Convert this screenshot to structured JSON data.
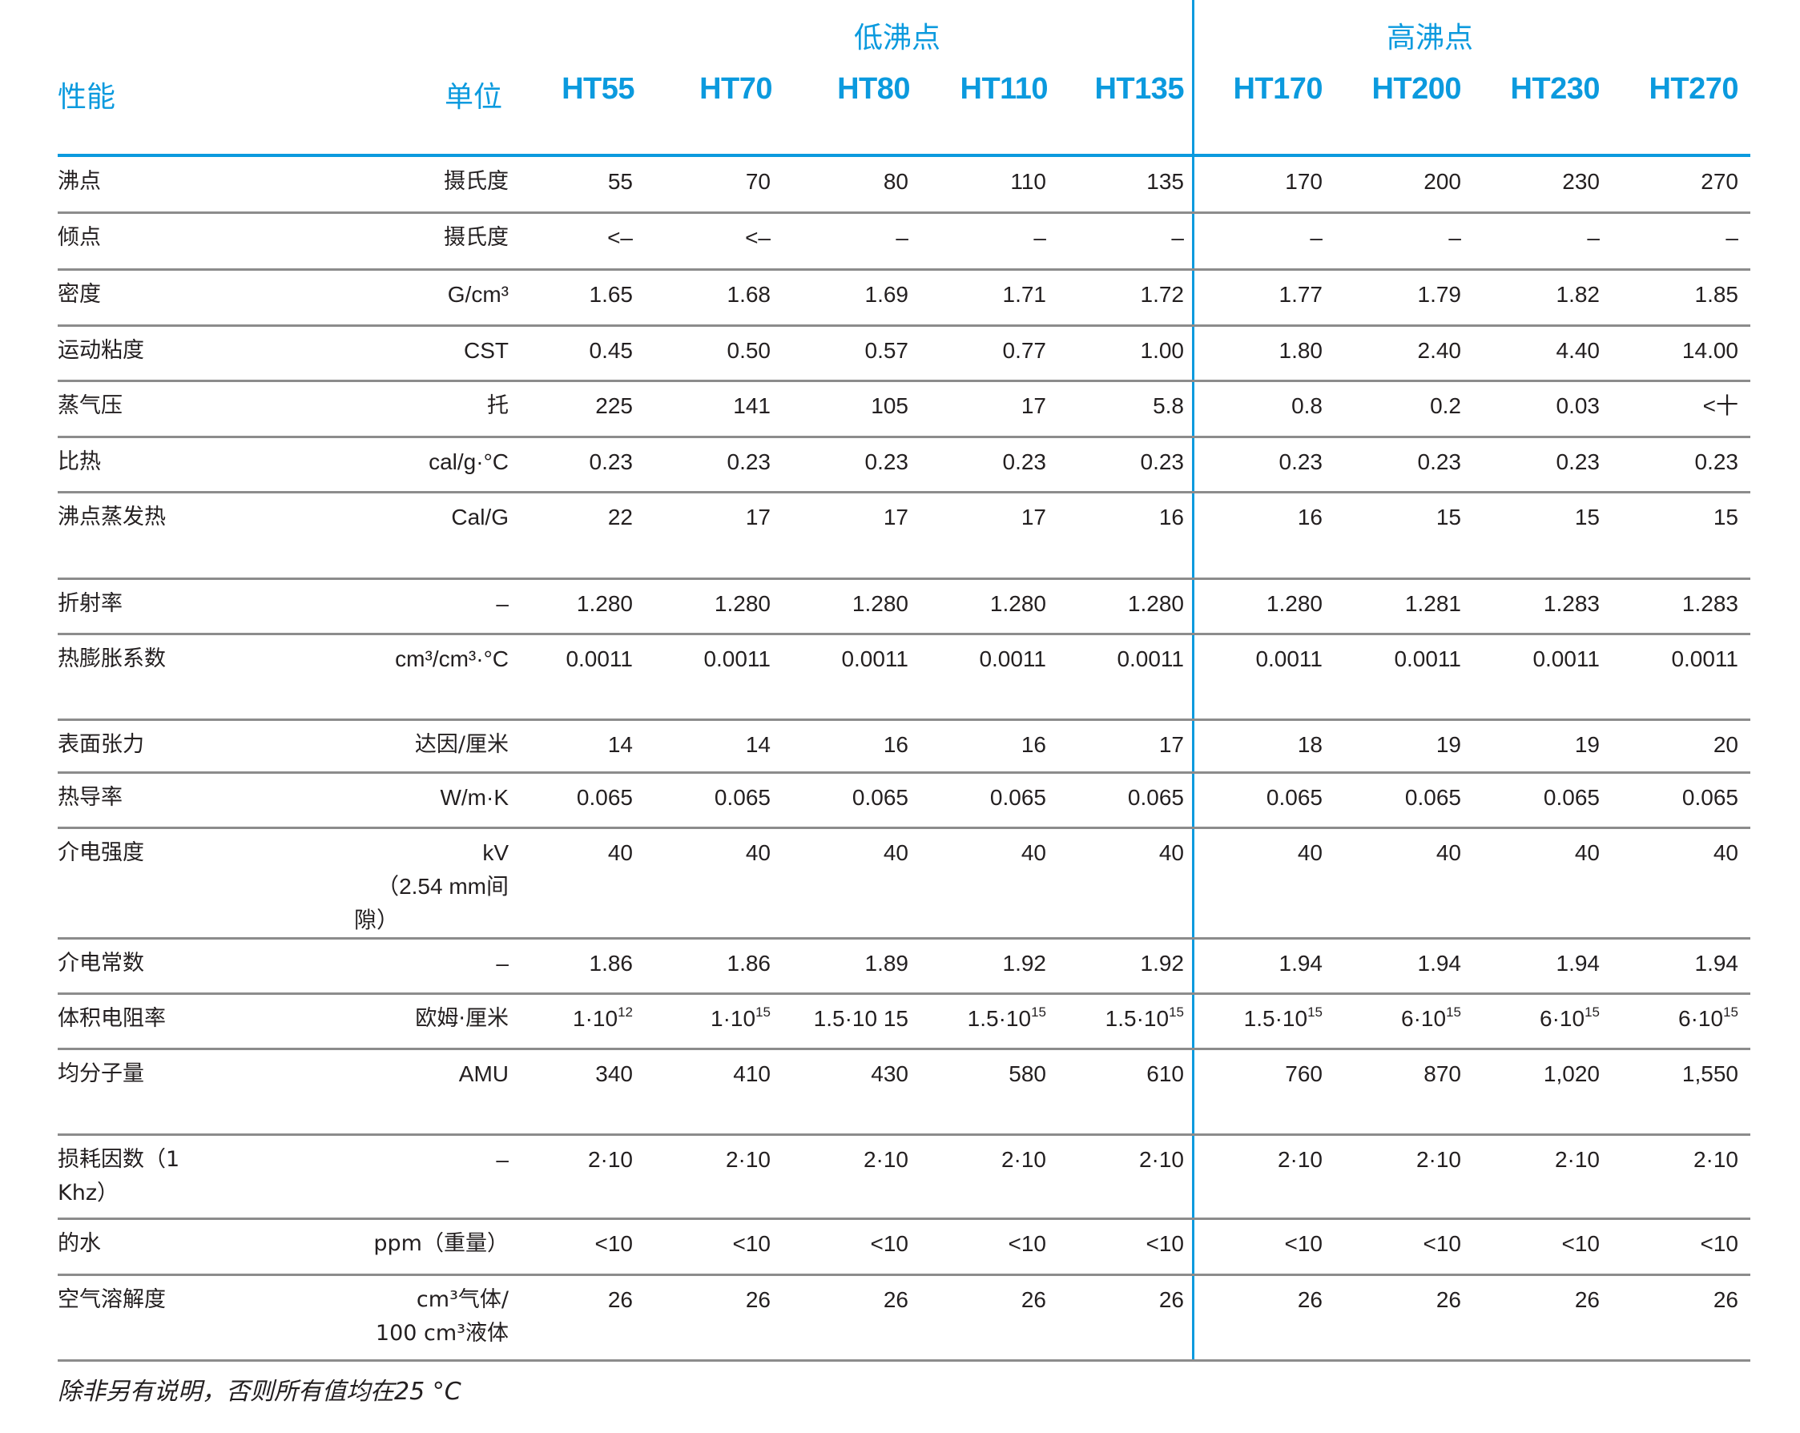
{
  "header": {
    "property_label": "性能",
    "unit_label": "单位",
    "groups": [
      {
        "label": "低沸点",
        "columns": [
          "HT55",
          "HT70",
          "HT80",
          "HT110",
          "HT135"
        ]
      },
      {
        "label": "高沸点",
        "columns": [
          "HT170",
          "HT200",
          "HT230",
          "HT270"
        ]
      }
    ],
    "columns": [
      "HT55",
      "HT70",
      "HT80",
      "HT110",
      "HT135",
      "HT170",
      "HT200",
      "HT230",
      "HT270"
    ]
  },
  "rows": [
    {
      "property": "沸点",
      "unit": "摄氏度",
      "values": [
        "55",
        "70",
        "80",
        "110",
        "135",
        "170",
        "200",
        "230",
        "270"
      ]
    },
    {
      "property": "倾点",
      "unit": "摄氏度",
      "values": [
        "<–",
        "<–",
        "–",
        "–",
        "–",
        "–",
        "–",
        "–",
        "–"
      ]
    },
    {
      "property": "密度",
      "unit": "G/cm³",
      "values": [
        "1.65",
        "1.68",
        "1.69",
        "1.71",
        "1.72",
        "1.77",
        "1.79",
        "1.82",
        "1.85"
      ]
    },
    {
      "property": "运动粘度",
      "unit": "CST",
      "values": [
        "0.45",
        "0.50",
        "0.57",
        "0.77",
        "1.00",
        "1.80",
        "2.40",
        "4.40",
        "14.00"
      ]
    },
    {
      "property": "蒸气压",
      "unit": "托",
      "values": [
        "225",
        "141",
        "105",
        "17",
        "5.8",
        "0.8",
        "0.2",
        "0.03",
        "<十"
      ]
    },
    {
      "property": "比热",
      "unit": "cal/g·°C",
      "values": [
        "0.23",
        "0.23",
        "0.23",
        "0.23",
        "0.23",
        "0.23",
        "0.23",
        "0.23",
        "0.23"
      ]
    },
    {
      "property": "沸点蒸发热",
      "unit": "Cal/G",
      "values": [
        "22",
        "17",
        "17",
        "17",
        "16",
        "16",
        "15",
        "15",
        "15"
      ]
    },
    {
      "property": "折射率",
      "unit": "–",
      "values": [
        "1.280",
        "1.280",
        "1.280",
        "1.280",
        "1.280",
        "1.280",
        "1.281",
        "1.283",
        "1.283"
      ]
    },
    {
      "property": "热膨胀系数",
      "unit": "cm³/cm³·°C",
      "values": [
        "0.0011",
        "0.0011",
        "0.0011",
        "0.0011",
        "0.0011",
        "0.0011",
        "0.0011",
        "0.0011",
        "0.0011"
      ]
    },
    {
      "property": "表面张力",
      "unit": "达因/厘米",
      "values": [
        "14",
        "14",
        "16",
        "16",
        "17",
        "18",
        "19",
        "19",
        "20"
      ]
    },
    {
      "property": "热导率",
      "unit": "W/m·K",
      "values": [
        "0.065",
        "0.065",
        "0.065",
        "0.065",
        "0.065",
        "0.065",
        "0.065",
        "0.065",
        "0.065"
      ]
    },
    {
      "property": "介电强度",
      "unit": "kV",
      "unit_line2": "（2.54 mm间",
      "unit_line3": "隙）",
      "values": [
        "40",
        "40",
        "40",
        "40",
        "40",
        "40",
        "40",
        "40",
        "40"
      ]
    },
    {
      "property": "介电常数",
      "unit": "–",
      "values": [
        "1.86",
        "1.86",
        "1.89",
        "1.92",
        "1.92",
        "1.94",
        "1.94",
        "1.94",
        "1.94"
      ]
    },
    {
      "property": "体积电阻率",
      "unit": "欧姆·厘米",
      "values": [
        "1·10¹²",
        "1·10¹⁵",
        "1.5·10 15",
        "1.5·10¹⁵",
        "1.5·10¹⁵",
        "1.5·10¹⁵",
        "6·10¹⁵",
        "6·10¹⁵",
        "6·10¹⁵"
      ],
      "values_base": [
        "1·10",
        "1·10",
        "1.5·10 15",
        "1.5·10",
        "1.5·10",
        "1.5·10",
        "6·10",
        "6·10",
        "6·10"
      ],
      "values_exp": [
        "12",
        "15",
        "",
        "15",
        "15",
        "15",
        "15",
        "15",
        "15"
      ]
    },
    {
      "property": "均分子量",
      "unit": "AMU",
      "values": [
        "340",
        "410",
        "430",
        "580",
        "610",
        "760",
        "870",
        "1,020",
        "1,550"
      ]
    },
    {
      "property": "损耗因数（1",
      "property_line2": "Khz）",
      "unit": "–",
      "values": [
        "2·10",
        "2·10",
        "2·10",
        "2·10",
        "2·10",
        "2·10",
        "2·10",
        "2·10",
        "2·10"
      ]
    },
    {
      "property": "的水",
      "unit": "ppm（重量）",
      "values": [
        "<10",
        "<10",
        "<10",
        "<10",
        "<10",
        "<10",
        "<10",
        "<10",
        "<10"
      ]
    },
    {
      "property": "空气溶解度",
      "unit": "cm³气体/",
      "unit_line2": "100 cm³液体",
      "values": [
        "26",
        "26",
        "26",
        "26",
        "26",
        "26",
        "26",
        "26",
        "26"
      ]
    }
  ],
  "footnote": "除非另有说明，否则所有值均在25 °C",
  "colors": {
    "accent": "#0b9ade",
    "rule": "#8c8c8c",
    "text": "#231f20"
  }
}
